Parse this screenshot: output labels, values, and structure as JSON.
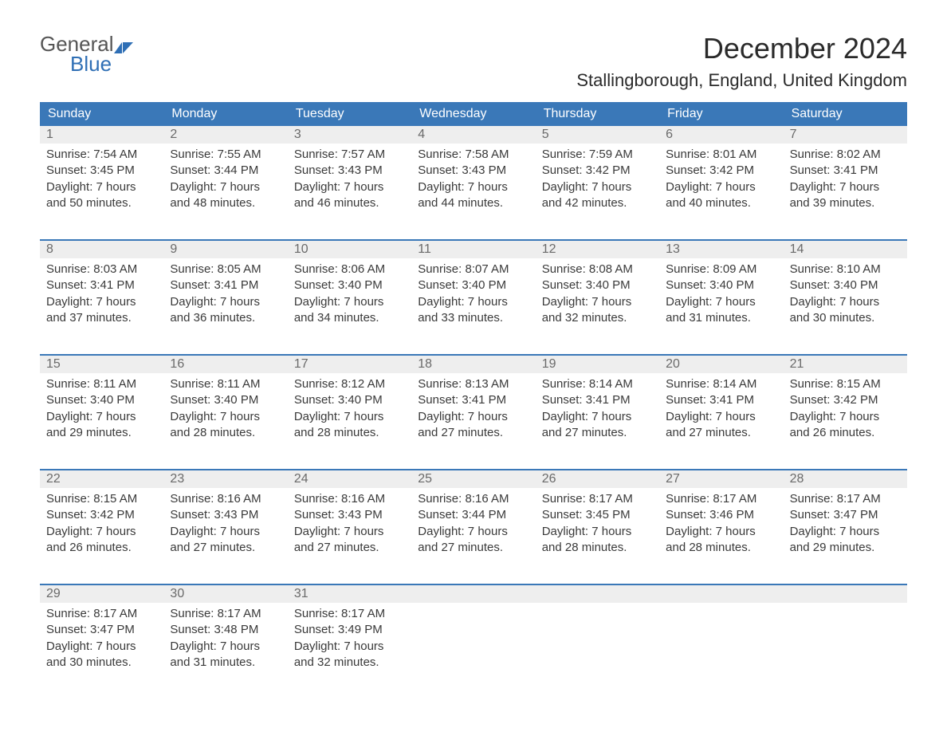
{
  "logo": {
    "word1": "General",
    "word2": "Blue"
  },
  "title": "December 2024",
  "location": "Stallingborough, England, United Kingdom",
  "colors": {
    "header_bg": "#3a78b8",
    "header_text": "#ffffff",
    "daynum_bg": "#eeeeee",
    "daynum_text": "#6a6a6a",
    "body_text": "#3a3a3a",
    "week_border": "#3a78b8",
    "logo_blue": "#2f6fb5",
    "logo_gray": "#555555"
  },
  "dayNames": [
    "Sunday",
    "Monday",
    "Tuesday",
    "Wednesday",
    "Thursday",
    "Friday",
    "Saturday"
  ],
  "weeks": [
    [
      {
        "n": "1",
        "sunrise": "7:54 AM",
        "sunset": "3:45 PM",
        "daylight": "7 hours and 50 minutes."
      },
      {
        "n": "2",
        "sunrise": "7:55 AM",
        "sunset": "3:44 PM",
        "daylight": "7 hours and 48 minutes."
      },
      {
        "n": "3",
        "sunrise": "7:57 AM",
        "sunset": "3:43 PM",
        "daylight": "7 hours and 46 minutes."
      },
      {
        "n": "4",
        "sunrise": "7:58 AM",
        "sunset": "3:43 PM",
        "daylight": "7 hours and 44 minutes."
      },
      {
        "n": "5",
        "sunrise": "7:59 AM",
        "sunset": "3:42 PM",
        "daylight": "7 hours and 42 minutes."
      },
      {
        "n": "6",
        "sunrise": "8:01 AM",
        "sunset": "3:42 PM",
        "daylight": "7 hours and 40 minutes."
      },
      {
        "n": "7",
        "sunrise": "8:02 AM",
        "sunset": "3:41 PM",
        "daylight": "7 hours and 39 minutes."
      }
    ],
    [
      {
        "n": "8",
        "sunrise": "8:03 AM",
        "sunset": "3:41 PM",
        "daylight": "7 hours and 37 minutes."
      },
      {
        "n": "9",
        "sunrise": "8:05 AM",
        "sunset": "3:41 PM",
        "daylight": "7 hours and 36 minutes."
      },
      {
        "n": "10",
        "sunrise": "8:06 AM",
        "sunset": "3:40 PM",
        "daylight": "7 hours and 34 minutes."
      },
      {
        "n": "11",
        "sunrise": "8:07 AM",
        "sunset": "3:40 PM",
        "daylight": "7 hours and 33 minutes."
      },
      {
        "n": "12",
        "sunrise": "8:08 AM",
        "sunset": "3:40 PM",
        "daylight": "7 hours and 32 minutes."
      },
      {
        "n": "13",
        "sunrise": "8:09 AM",
        "sunset": "3:40 PM",
        "daylight": "7 hours and 31 minutes."
      },
      {
        "n": "14",
        "sunrise": "8:10 AM",
        "sunset": "3:40 PM",
        "daylight": "7 hours and 30 minutes."
      }
    ],
    [
      {
        "n": "15",
        "sunrise": "8:11 AM",
        "sunset": "3:40 PM",
        "daylight": "7 hours and 29 minutes."
      },
      {
        "n": "16",
        "sunrise": "8:11 AM",
        "sunset": "3:40 PM",
        "daylight": "7 hours and 28 minutes."
      },
      {
        "n": "17",
        "sunrise": "8:12 AM",
        "sunset": "3:40 PM",
        "daylight": "7 hours and 28 minutes."
      },
      {
        "n": "18",
        "sunrise": "8:13 AM",
        "sunset": "3:41 PM",
        "daylight": "7 hours and 27 minutes."
      },
      {
        "n": "19",
        "sunrise": "8:14 AM",
        "sunset": "3:41 PM",
        "daylight": "7 hours and 27 minutes."
      },
      {
        "n": "20",
        "sunrise": "8:14 AM",
        "sunset": "3:41 PM",
        "daylight": "7 hours and 27 minutes."
      },
      {
        "n": "21",
        "sunrise": "8:15 AM",
        "sunset": "3:42 PM",
        "daylight": "7 hours and 26 minutes."
      }
    ],
    [
      {
        "n": "22",
        "sunrise": "8:15 AM",
        "sunset": "3:42 PM",
        "daylight": "7 hours and 26 minutes."
      },
      {
        "n": "23",
        "sunrise": "8:16 AM",
        "sunset": "3:43 PM",
        "daylight": "7 hours and 27 minutes."
      },
      {
        "n": "24",
        "sunrise": "8:16 AM",
        "sunset": "3:43 PM",
        "daylight": "7 hours and 27 minutes."
      },
      {
        "n": "25",
        "sunrise": "8:16 AM",
        "sunset": "3:44 PM",
        "daylight": "7 hours and 27 minutes."
      },
      {
        "n": "26",
        "sunrise": "8:17 AM",
        "sunset": "3:45 PM",
        "daylight": "7 hours and 28 minutes."
      },
      {
        "n": "27",
        "sunrise": "8:17 AM",
        "sunset": "3:46 PM",
        "daylight": "7 hours and 28 minutes."
      },
      {
        "n": "28",
        "sunrise": "8:17 AM",
        "sunset": "3:47 PM",
        "daylight": "7 hours and 29 minutes."
      }
    ],
    [
      {
        "n": "29",
        "sunrise": "8:17 AM",
        "sunset": "3:47 PM",
        "daylight": "7 hours and 30 minutes."
      },
      {
        "n": "30",
        "sunrise": "8:17 AM",
        "sunset": "3:48 PM",
        "daylight": "7 hours and 31 minutes."
      },
      {
        "n": "31",
        "sunrise": "8:17 AM",
        "sunset": "3:49 PM",
        "daylight": "7 hours and 32 minutes."
      },
      null,
      null,
      null,
      null
    ]
  ],
  "labels": {
    "sunrise": "Sunrise:",
    "sunset": "Sunset:",
    "daylight": "Daylight:"
  }
}
